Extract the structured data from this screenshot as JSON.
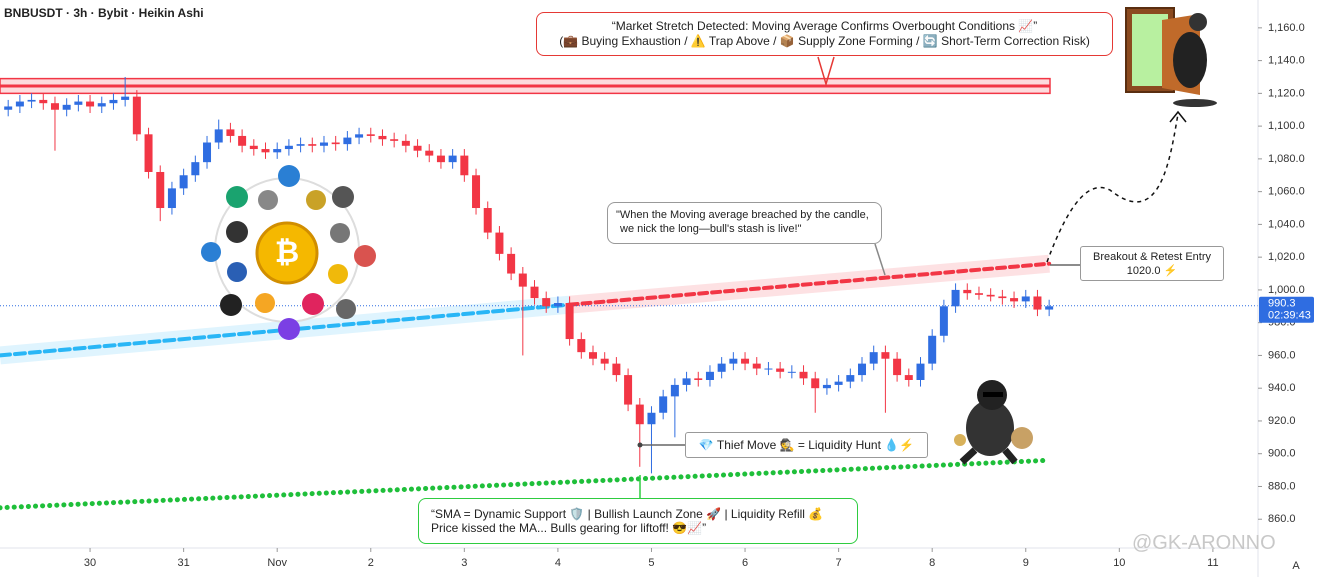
{
  "chart_data": {
    "type": "candlestick",
    "title": "BNBUSDT · 3h · Bybit · Heikin Ashi",
    "open": [
      1110,
      1112,
      1115,
      1116,
      1114,
      1110,
      1113,
      1115,
      1112,
      1114,
      1116,
      1118,
      1095,
      1072,
      1050,
      1062,
      1070,
      1078,
      1090,
      1098,
      1094,
      1088,
      1086,
      1084,
      1086,
      1088,
      1089,
      1088,
      1090,
      1089,
      1093,
      1095,
      1094,
      1092,
      1091,
      1088,
      1085,
      1082,
      1078,
      1082,
      1070,
      1050,
      1035,
      1022,
      1010,
      1002,
      995,
      990,
      992,
      970,
      962,
      958,
      955,
      948,
      930,
      918,
      925,
      935,
      942,
      946,
      945,
      950,
      955,
      958,
      955,
      952,
      952,
      950,
      950,
      946,
      940,
      942,
      944,
      948,
      955,
      962,
      958,
      948,
      945,
      955,
      972,
      990,
      1000,
      998,
      997,
      996,
      995,
      993,
      996,
      988
    ],
    "high": [
      1116,
      1119,
      1120,
      1120,
      1118,
      1117,
      1119,
      1119,
      1118,
      1120,
      1130,
      1122,
      1099,
      1076,
      1066,
      1074,
      1082,
      1094,
      1104,
      1102,
      1098,
      1092,
      1090,
      1090,
      1092,
      1093,
      1093,
      1094,
      1094,
      1097,
      1099,
      1099,
      1098,
      1096,
      1095,
      1092,
      1089,
      1086,
      1086,
      1086,
      1074,
      1054,
      1039,
      1026,
      1014,
      1006,
      999,
      996,
      996,
      974,
      966,
      962,
      959,
      952,
      934,
      929,
      939,
      946,
      950,
      950,
      954,
      959,
      962,
      962,
      959,
      956,
      956,
      954,
      954,
      950,
      946,
      948,
      952,
      959,
      966,
      966,
      962,
      952,
      959,
      976,
      994,
      1004,
      1004,
      1002,
      1001,
      1000,
      999,
      1000,
      1000,
      994
    ],
    "low": [
      1106,
      1108,
      1111,
      1110,
      1085,
      1106,
      1109,
      1108,
      1108,
      1110,
      1112,
      1091,
      1068,
      1042,
      1046,
      1058,
      1066,
      1074,
      1086,
      1090,
      1084,
      1082,
      1080,
      1080,
      1082,
      1084,
      1084,
      1084,
      1085,
      1085,
      1089,
      1090,
      1088,
      1087,
      1084,
      1081,
      1078,
      1074,
      1074,
      1066,
      1046,
      1031,
      1018,
      1006,
      960,
      991,
      986,
      986,
      966,
      958,
      954,
      951,
      944,
      926,
      892,
      888,
      921,
      910,
      938,
      941,
      941,
      946,
      951,
      951,
      948,
      948,
      946,
      946,
      942,
      925,
      936,
      938,
      940,
      944,
      951,
      925,
      944,
      941,
      941,
      951,
      968,
      986,
      994,
      994,
      993,
      991,
      989,
      989,
      984,
      984
    ],
    "close": [
      1112,
      1115,
      1116,
      1114,
      1110,
      1113,
      1115,
      1112,
      1114,
      1116,
      1118,
      1095,
      1072,
      1050,
      1062,
      1070,
      1078,
      1090,
      1098,
      1094,
      1088,
      1086,
      1084,
      1086,
      1088,
      1089,
      1088,
      1090,
      1089,
      1093,
      1095,
      1094,
      1092,
      1091,
      1088,
      1085,
      1082,
      1078,
      1082,
      1070,
      1050,
      1035,
      1022,
      1010,
      1002,
      995,
      990,
      992,
      970,
      962,
      958,
      955,
      948,
      930,
      918,
      925,
      935,
      942,
      946,
      945,
      950,
      955,
      958,
      955,
      952,
      952,
      950,
      950,
      946,
      940,
      942,
      944,
      948,
      955,
      962,
      958,
      948,
      945,
      955,
      972,
      990,
      1000,
      998,
      997,
      996,
      995,
      993,
      996,
      988,
      990
    ],
    "up_color": "#2f6de1",
    "down_color": "#f23645",
    "xlim": [
      -0.7,
      106.6
    ],
    "xticks": [
      {
        "value": 7,
        "label": "30"
      },
      {
        "value": 15,
        "label": "31"
      },
      {
        "value": 23,
        "label": "Nov"
      },
      {
        "value": 31,
        "label": "2"
      },
      {
        "value": 39,
        "label": "3"
      },
      {
        "value": 47,
        "label": "4"
      },
      {
        "value": 55,
        "label": "5"
      },
      {
        "value": 63,
        "label": "6"
      },
      {
        "value": 71,
        "label": "7"
      },
      {
        "value": 79,
        "label": "8"
      },
      {
        "value": 87,
        "label": "9"
      },
      {
        "value": 95,
        "label": "10"
      },
      {
        "value": 103,
        "label": "11"
      }
    ],
    "ylim": [
      829,
      1177
    ],
    "yticks": [
      {
        "value": 860,
        "label": "860.0"
      },
      {
        "value": 880,
        "label": "880.0"
      },
      {
        "value": 900,
        "label": "900.0"
      },
      {
        "value": 920,
        "label": "920.0"
      },
      {
        "value": 940,
        "label": "940.0"
      },
      {
        "value": 960,
        "label": "960.0"
      },
      {
        "value": 980,
        "label": "980.0"
      },
      {
        "value": 1000,
        "label": "1,000.0"
      },
      {
        "value": 1020,
        "label": "1,020.0"
      },
      {
        "value": 1040,
        "label": "1,040.0"
      },
      {
        "value": 1060,
        "label": "1,060.0"
      },
      {
        "value": 1080,
        "label": "1,080.0"
      },
      {
        "value": 1100,
        "label": "1,100.0"
      },
      {
        "value": 1120,
        "label": "1,120.0"
      },
      {
        "value": 1140,
        "label": "1,140.0"
      },
      {
        "value": 1160,
        "label": "1,160.0"
      }
    ],
    "resistance": [
      1120,
      1129
    ],
    "resistance_color": "#f23645",
    "support_line": {
      "x": [
        -0.7,
        89
      ],
      "values": [
        867,
        896
      ],
      "color": "#1fbf3a"
    },
    "ma_lower": {
      "x": [
        -0.7,
        48
      ],
      "values": [
        960,
        991
      ],
      "color": "#29b6f6"
    },
    "ma_upper": {
      "x": [
        48,
        89
      ],
      "values": [
        991,
        1016
      ],
      "color": "#f23645"
    },
    "last_price": {
      "value": 990.3,
      "countdown": "02:39:43",
      "color": "#2f6de1"
    },
    "annotations": {
      "overbought": [
        "“Market Stretch Detected: Moving Average Confirms Overbought Conditions 📈”",
        "(💼 Buying Exhaustion / ⚠️ Trap Above / 📦 Supply Zone Forming / 🔄 Short-Term Correction Risk)"
      ],
      "breach": [
        "\"When the Moving average breached by the candle,",
        "we nick the long—bull's stash is live!\""
      ],
      "entry": [
        "Breakout & Retest Entry",
        "1020.0 ⚡"
      ],
      "thief": "💎 Thief Move 🕵️ = Liquidity Hunt 💧⚡",
      "support": [
        "“SMA = Dynamic Support 🛡️ | Bullish Launch Zone 🚀 | Liquidity Refill 💰",
        "Price kissed the MA... Bulls gearing for liftoff! 😎📈”"
      ]
    },
    "watermark": "@GK-ARONNO",
    "scale_button": "A"
  }
}
